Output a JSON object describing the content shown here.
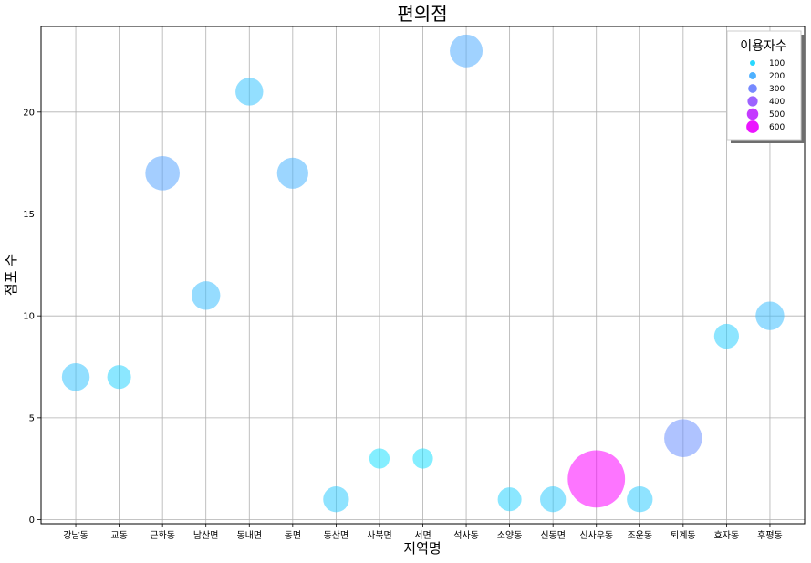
{
  "chart_data": {
    "type": "scatter",
    "title": "편의점",
    "xlabel": "지역명",
    "ylabel": "점포 수",
    "ylim": [
      -0.2,
      24.2
    ],
    "yticks": [
      0,
      5,
      10,
      15,
      20
    ],
    "grid": true,
    "categories": [
      "강남동",
      "교동",
      "근화동",
      "남산면",
      "동내면",
      "동면",
      "동산면",
      "사북면",
      "서면",
      "석사동",
      "소양동",
      "신동면",
      "신사우동",
      "조운동",
      "퇴계동",
      "효자동",
      "후평동"
    ],
    "values": [
      7,
      7,
      17,
      11,
      21,
      17,
      1,
      3,
      3,
      23,
      1,
      1,
      2,
      1,
      4,
      9,
      10
    ],
    "sizes": [
      150,
      110,
      230,
      160,
      150,
      190,
      130,
      80,
      80,
      210,
      110,
      130,
      640,
      130,
      280,
      120,
      160
    ],
    "size_range": [
      0,
      650
    ],
    "colormap": "cool",
    "legend": {
      "title": "이용자수",
      "position": "top-right",
      "entries": [
        {
          "label": "100",
          "value": 100
        },
        {
          "label": "200",
          "value": 200
        },
        {
          "label": "300",
          "value": 300
        },
        {
          "label": "400",
          "value": 400
        },
        {
          "label": "500",
          "value": 500
        },
        {
          "label": "600",
          "value": 600
        }
      ]
    }
  }
}
